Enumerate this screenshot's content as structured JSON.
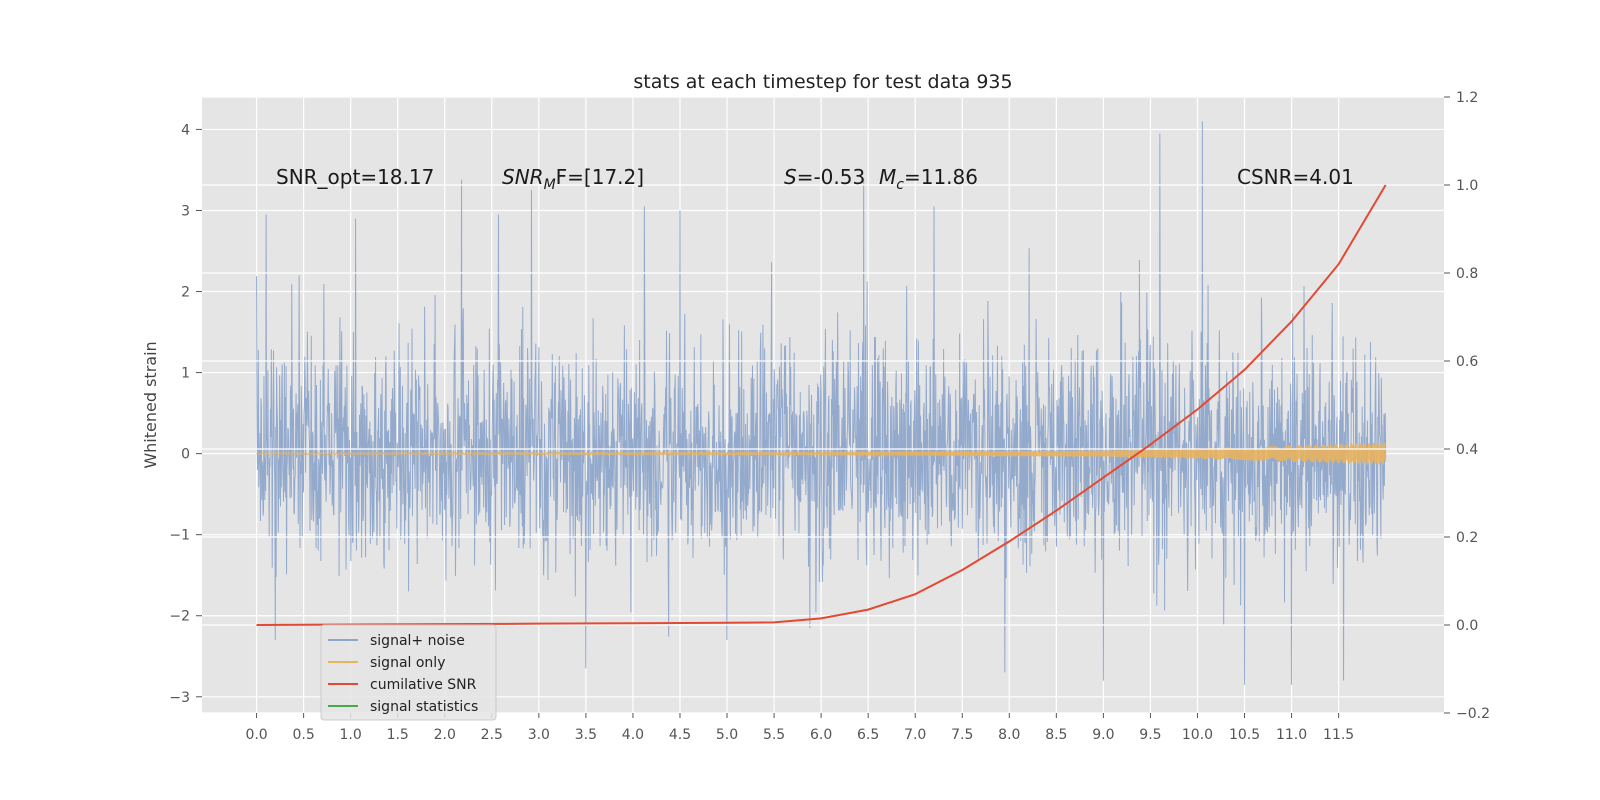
{
  "chart_data": {
    "type": "line",
    "title": "stats at each timestep for test data 935",
    "ylabel": "Whitened strain",
    "y2label": "",
    "xlim": [
      -0.58,
      12.62
    ],
    "ylim": [
      -3.2,
      4.4
    ],
    "y2lim": [
      -0.2,
      1.2
    ],
    "grid": true,
    "legend_position": "lower-left",
    "x_ticks": [
      0.0,
      0.5,
      1.0,
      1.5,
      2.0,
      2.5,
      3.0,
      3.5,
      4.0,
      4.5,
      5.0,
      5.5,
      6.0,
      6.5,
      7.0,
      7.5,
      8.0,
      8.5,
      9.0,
      9.5,
      10.0,
      10.5,
      11.0,
      11.5
    ],
    "x_tick_labels": [
      "0.0",
      "0.5",
      "1.0",
      "1.5",
      "2.0",
      "2.5",
      "3.0",
      "3.5",
      "4.0",
      "4.5",
      "5.0",
      "5.5",
      "6.0",
      "6.5",
      "7.0",
      "7.5",
      "8.0",
      "8.5",
      "9.0",
      "9.5",
      "10.0",
      "10.5",
      "11.0",
      "11.5"
    ],
    "y_ticks": [
      -3,
      -2,
      -1,
      0,
      1,
      2,
      3,
      4
    ],
    "y_tick_labels": [
      "−3",
      "−2",
      "−1",
      "0",
      "1",
      "2",
      "3",
      "4"
    ],
    "y2_ticks": [
      -0.2,
      0.0,
      0.2,
      0.4,
      0.6,
      0.8,
      1.0,
      1.2
    ],
    "y2_tick_labels": [
      "−0.2",
      "0.0",
      "0.2",
      "0.4",
      "0.6",
      "0.8",
      "1.0",
      "1.2"
    ],
    "annotations": {
      "snr_opt": "SNR_opt=18.17",
      "snr_mf_main": "SNR",
      "snr_mf_sub": "M",
      "snr_mf_rest": "F=[17.2]",
      "s_main": "S",
      "s_rest": "=-0.53",
      "mc_main": "M",
      "mc_sub": "c",
      "mc_rest": "=11.86",
      "csnr": "CSNR=4.01"
    },
    "series": [
      {
        "name": "signal+ noise",
        "axis": "left",
        "color": "#8fa6cb",
        "x_range": [
          0.0,
          12.0
        ],
        "std": 0.7,
        "peak_values": [
          {
            "x": 0.1,
            "y": 2.95
          },
          {
            "x": 0.45,
            "y": 2.2
          },
          {
            "x": 1.05,
            "y": 2.9
          },
          {
            "x": 2.18,
            "y": 3.38
          },
          {
            "x": 2.57,
            "y": 2.95
          },
          {
            "x": 2.92,
            "y": 3.25
          },
          {
            "x": 4.12,
            "y": 3.05
          },
          {
            "x": 4.5,
            "y": 3.0
          },
          {
            "x": 6.45,
            "y": 3.4
          },
          {
            "x": 7.2,
            "y": 3.05
          },
          {
            "x": 9.6,
            "y": 3.95
          },
          {
            "x": 10.05,
            "y": 4.1
          },
          {
            "x": 0.2,
            "y": -2.3
          },
          {
            "x": 3.5,
            "y": -2.65
          },
          {
            "x": 7.95,
            "y": -2.7
          },
          {
            "x": 9.0,
            "y": -2.8
          },
          {
            "x": 10.5,
            "y": -2.85
          },
          {
            "x": 11.0,
            "y": -2.85
          },
          {
            "x": 11.55,
            "y": -2.8
          }
        ]
      },
      {
        "name": "signal only",
        "axis": "left",
        "color": "#e8b25e",
        "x_range": [
          0.0,
          12.0
        ],
        "amplitude": [
          {
            "x": 0.0,
            "y": 0.01
          },
          {
            "x": 6.0,
            "y": 0.015
          },
          {
            "x": 9.0,
            "y": 0.04
          },
          {
            "x": 10.5,
            "y": 0.08
          },
          {
            "x": 12.0,
            "y": 0.14
          }
        ]
      },
      {
        "name": "cumilative SNR",
        "axis": "right",
        "color": "#e24a33",
        "x": [
          0.0,
          1.0,
          2.0,
          3.0,
          4.0,
          5.0,
          5.5,
          6.0,
          6.5,
          7.0,
          7.5,
          8.0,
          8.5,
          9.0,
          9.5,
          10.0,
          10.5,
          11.0,
          11.5,
          12.0
        ],
        "values": [
          0.0,
          0.001,
          0.002,
          0.003,
          0.004,
          0.005,
          0.006,
          0.015,
          0.035,
          0.07,
          0.125,
          0.19,
          0.26,
          0.335,
          0.41,
          0.49,
          0.58,
          0.69,
          0.82,
          1.0
        ]
      },
      {
        "name": "signal statistics",
        "axis": "left",
        "color": "#4aa84a",
        "x": [],
        "values": []
      }
    ]
  }
}
